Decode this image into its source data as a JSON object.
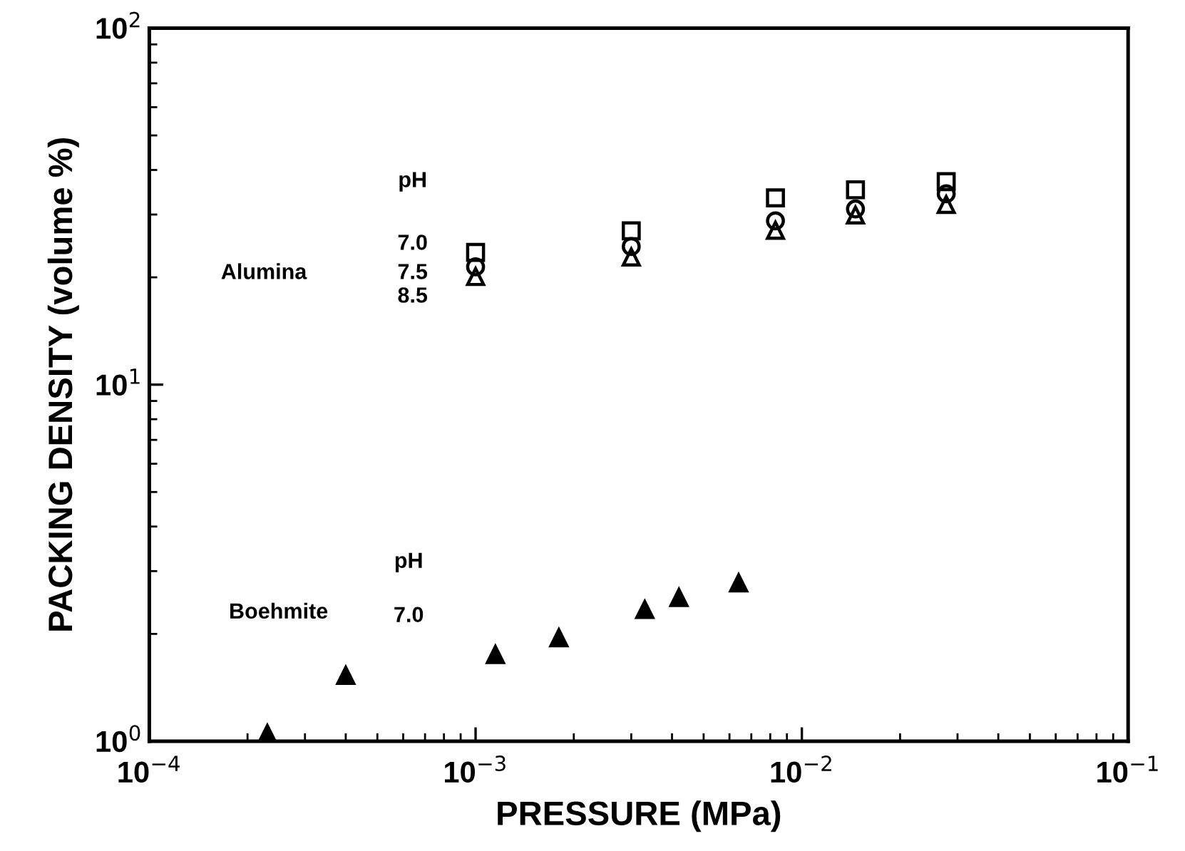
{
  "chart_data": {
    "type": "scatter",
    "xlabel": "PRESSURE (MPa)",
    "ylabel": "PACKING DENSITY (volume %)",
    "log": "xy",
    "xlim": [
      0.0001,
      0.1
    ],
    "ylim": [
      1,
      100
    ],
    "xticks": [
      {
        "value": 0.0001,
        "label": "10$^{−4}$"
      },
      {
        "value": 0.001,
        "label": "10$^{−3}$"
      },
      {
        "value": 0.01,
        "label": "10$^{−2}$"
      },
      {
        "value": 0.1,
        "label": "10$^{−1}$"
      }
    ],
    "yticks": [
      {
        "value": 1,
        "label": "10$^{0}$"
      },
      {
        "value": 10,
        "label": "10$^{1}$"
      },
      {
        "value": 100,
        "label": "10$^{2}$"
      }
    ],
    "grid": false,
    "legend": false,
    "series": [
      {
        "color": "#000000",
        "marker": "square",
        "x": [
          0.001,
          0.003,
          0.0083,
          0.0146,
          0.0277
        ],
        "values": [
          23.5,
          27.0,
          33.4,
          35.2,
          37.1
        ]
      },
      {
        "color": "#000000",
        "marker": "circle",
        "x": [
          0.001,
          0.003,
          0.0083,
          0.0146,
          0.0277
        ],
        "values": [
          21.4,
          24.4,
          28.8,
          31.1,
          34.3
        ]
      },
      {
        "color": "#000000",
        "marker": "triangle",
        "x": [
          0.001,
          0.003,
          0.0083,
          0.0146,
          0.0277
        ],
        "values": [
          20.1,
          22.8,
          27.1,
          29.9,
          32.0
        ]
      },
      {
        "color": "#000000",
        "marker": "triangle",
        "x": [
          0.00023,
          0.0004,
          0.00115,
          0.0018,
          0.0033,
          0.0042,
          0.0064
        ],
        "values": [
          1.05,
          1.53,
          1.75,
          1.95,
          2.34,
          2.53,
          2.78
        ]
      }
    ],
    "annotations": [
      "pH",
      "7.0",
      "7.5",
      "8.5",
      "Alumina",
      "pH",
      "Boehmite",
      "7.0"
    ]
  }
}
